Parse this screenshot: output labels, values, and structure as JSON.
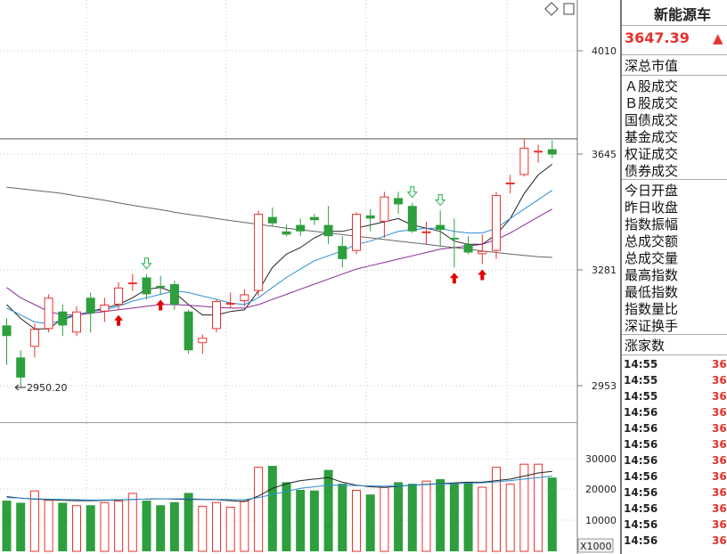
{
  "title": "新能源车",
  "price": "3647.39",
  "price_arrow": "▲",
  "fields": [
    "深总市值",
    "Ａ股成交",
    "Ｂ股成交",
    "国债成交",
    "基金成交",
    "权证成交",
    "债券成交",
    "今日开盘",
    "昨日收盘",
    "指数振幅",
    "总成交额",
    "总成交量",
    "最高指数",
    "最低指数",
    "指数量比",
    "深证换手",
    "涨家数"
  ],
  "ticks": [
    {
      "time": "14:55",
      "value": "36"
    },
    {
      "time": "14:55",
      "value": "36"
    },
    {
      "time": "14:55",
      "value": "36"
    },
    {
      "time": "14:56",
      "value": "36"
    },
    {
      "time": "14:56",
      "value": "36"
    },
    {
      "time": "14:56",
      "value": "36"
    },
    {
      "time": "14:56",
      "value": "36"
    },
    {
      "time": "14:56",
      "value": "36"
    },
    {
      "time": "14:56",
      "value": "36"
    },
    {
      "time": "14:56",
      "value": "36"
    },
    {
      "time": "14:56",
      "value": "36"
    },
    {
      "time": "14:56",
      "value": "36"
    }
  ],
  "toolbar_icons": [
    "diamond-icon",
    "square-icon"
  ],
  "colors": {
    "up": "#e8322d",
    "down": "#2e9e3e",
    "ma_black": "#222222",
    "ma_blue": "#2a8fd8",
    "ma_purple": "#8a2a9a",
    "ma_gray": "#666666",
    "ref_line": "#555555"
  },
  "chart_data": {
    "type": "candlestick",
    "price_axis": {
      "ticks": [
        "4010",
        "3645",
        "3281",
        "2953"
      ],
      "ylim": [
        2953,
        4010
      ]
    },
    "volume_axis": {
      "ticks": [
        "30000",
        "20000",
        "10000"
      ],
      "unit": "X1000",
      "ylim": [
        0,
        30000
      ]
    },
    "reference_price": 3700,
    "low_marker": {
      "label": "2950.20",
      "value": 2950.2,
      "candle": 1
    },
    "candles": [
      [
        3120,
        3090,
        3140,
        3010
      ],
      [
        3030,
        2975,
        3050,
        2950.2
      ],
      [
        3060,
        3110,
        3125,
        3030
      ],
      [
        3110,
        3200,
        3210,
        3100
      ],
      [
        3160,
        3120,
        3180,
        3090
      ],
      [
        3100,
        3160,
        3175,
        3090
      ],
      [
        3200,
        3155,
        3215,
        3100
      ],
      [
        3160,
        3180,
        3200,
        3130
      ],
      [
        3180,
        3230,
        3245,
        3165
      ],
      [
        3240,
        3245,
        3270,
        3220
      ],
      [
        3260,
        3210,
        3270,
        3195
      ],
      [
        3235,
        3230,
        3265,
        3210
      ],
      [
        3240,
        3180,
        3250,
        3165
      ],
      [
        3160,
        3050,
        3165,
        3040
      ],
      [
        3070,
        3085,
        3095,
        3040
      ],
      [
        3110,
        3190,
        3195,
        3100
      ],
      [
        3185,
        3185,
        3215,
        3170
      ],
      [
        3190,
        3210,
        3225,
        3175
      ],
      [
        3220,
        3455,
        3465,
        3205
      ],
      [
        3445,
        3425,
        3475,
        3415
      ],
      [
        3400,
        3390,
        3420,
        3385
      ],
      [
        3420,
        3400,
        3440,
        3385
      ],
      [
        3445,
        3435,
        3455,
        3420
      ],
      [
        3420,
        3385,
        3480,
        3360
      ],
      [
        3355,
        3315,
        3385,
        3290
      ],
      [
        3340,
        3455,
        3460,
        3330
      ],
      [
        3450,
        3440,
        3470,
        3400
      ],
      [
        3430,
        3510,
        3525,
        3380
      ],
      [
        3505,
        3485,
        3525,
        3455
      ],
      [
        3480,
        3400,
        3490,
        3395
      ],
      [
        3400,
        3400,
        3430,
        3360
      ],
      [
        3420,
        3405,
        3465,
        3355
      ],
      [
        3380,
        3375,
        3440,
        3290
      ],
      [
        3360,
        3335,
        3385,
        3330
      ],
      [
        3330,
        3340,
        3390,
        3300
      ],
      [
        3340,
        3515,
        3525,
        3315
      ],
      [
        3555,
        3555,
        3580,
        3520
      ],
      [
        3580,
        3670,
        3700,
        3575
      ],
      [
        3655,
        3660,
        3680,
        3620
      ],
      [
        3665,
        3647.39,
        3695,
        3635
      ]
    ],
    "volume": [
      16500,
      15800,
      19800,
      16800,
      15800,
      15000,
      15000,
      16000,
      16500,
      19000,
      16500,
      15000,
      16000,
      19000,
      14800,
      16000,
      14500,
      16500,
      27500,
      27800,
      22500,
      20000,
      19800,
      26500,
      22000,
      20000,
      18500,
      21000,
      22500,
      22000,
      23000,
      23500,
      22000,
      22500,
      21000,
      27500,
      22000,
      28500,
      28500,
      24000
    ],
    "moving_averages": [
      {
        "color": "#222222",
        "values": [
          3180,
          3140,
          3110,
          3110,
          3140,
          3150,
          3160,
          3170,
          3180,
          3200,
          3225,
          3230,
          3215,
          3180,
          3150,
          3150,
          3160,
          3165,
          3220,
          3290,
          3330,
          3350,
          3380,
          3400,
          3400,
          3410,
          3420,
          3430,
          3440,
          3420,
          3410,
          3400,
          3370,
          3360,
          3360,
          3390,
          3440,
          3520,
          3580,
          3615
        ]
      },
      {
        "color": "#2a8fd8",
        "values": [
          3170,
          3150,
          3130,
          3125,
          3135,
          3150,
          3160,
          3165,
          3175,
          3190,
          3200,
          3210,
          3220,
          3215,
          3205,
          3195,
          3185,
          3180,
          3200,
          3230,
          3260,
          3285,
          3310,
          3325,
          3340,
          3360,
          3370,
          3385,
          3400,
          3405,
          3410,
          3410,
          3400,
          3395,
          3395,
          3410,
          3440,
          3470,
          3500,
          3530
        ]
      },
      {
        "color": "#8a2a9a",
        "values": [
          3230,
          3200,
          3180,
          3160,
          3150,
          3150,
          3155,
          3160,
          3165,
          3170,
          3175,
          3180,
          3180,
          3178,
          3175,
          3172,
          3170,
          3170,
          3180,
          3195,
          3210,
          3225,
          3240,
          3255,
          3270,
          3285,
          3295,
          3305,
          3315,
          3325,
          3335,
          3345,
          3350,
          3355,
          3360,
          3375,
          3395,
          3420,
          3445,
          3470
        ]
      },
      {
        "color": "#666666",
        "values": [
          3540,
          3535,
          3530,
          3525,
          3520,
          3512,
          3505,
          3498,
          3490,
          3482,
          3475,
          3468,
          3460,
          3453,
          3447,
          3440,
          3434,
          3428,
          3422,
          3416,
          3410,
          3405,
          3400,
          3395,
          3390,
          3385,
          3380,
          3375,
          3370,
          3365,
          3360,
          3355,
          3350,
          3345,
          3340,
          3335,
          3330,
          3326,
          3322,
          3320
        ]
      }
    ],
    "volume_averages": [
      {
        "color": "#222222",
        "values": [
          17800,
          17300,
          17000,
          16800,
          16600,
          16500,
          16500,
          16600,
          16700,
          16900,
          17000,
          17100,
          17000,
          16900,
          16900,
          16800,
          16500,
          16200,
          18000,
          20500,
          22000,
          23000,
          23500,
          24000,
          22500,
          21500,
          21000,
          20800,
          21200,
          21500,
          21800,
          22000,
          22300,
          22500,
          22500,
          23000,
          23500,
          24500,
          25500,
          26000
        ]
      },
      {
        "color": "#2a8fd8",
        "values": [
          17500,
          17300,
          17100,
          17000,
          16900,
          16800,
          16700,
          16700,
          16800,
          16900,
          17000,
          17100,
          17100,
          17100,
          17000,
          16900,
          16800,
          16800,
          17500,
          18500,
          19500,
          20500,
          21000,
          21500,
          21500,
          21400,
          21300,
          21200,
          21300,
          21500,
          21700,
          21900,
          22000,
          22200,
          22300,
          22600,
          23000,
          23500,
          24000,
          24500
        ]
      }
    ],
    "signals": [
      {
        "candle": 8,
        "direction": "up"
      },
      {
        "candle": 10,
        "direction": "down"
      },
      {
        "candle": 11,
        "direction": "up"
      },
      {
        "candle": 29,
        "direction": "down"
      },
      {
        "candle": 31,
        "direction": "down"
      },
      {
        "candle": 32,
        "direction": "up"
      },
      {
        "candle": 34,
        "direction": "up"
      }
    ]
  }
}
